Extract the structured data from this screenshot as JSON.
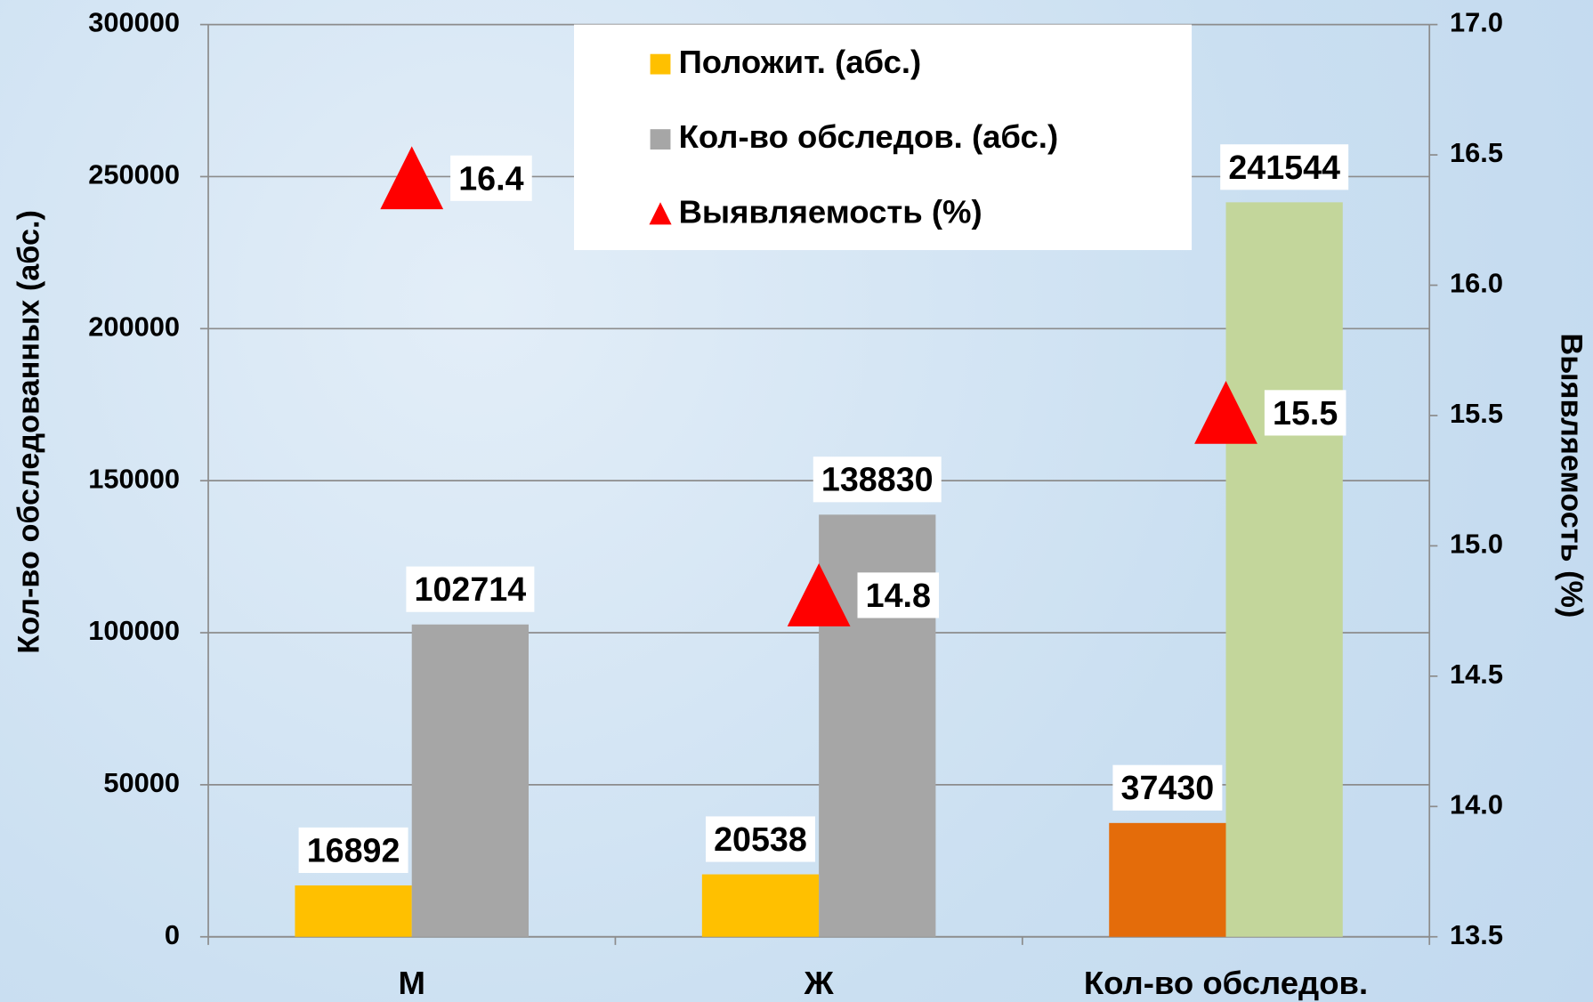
{
  "chart_data": {
    "type": "bar",
    "categories": [
      "М",
      "Ж",
      "Кол-во обследов."
    ],
    "series": [
      {
        "name": "Положит. (абс.)",
        "color": "#ffc000",
        "colors": [
          "#ffc000",
          "#ffc000",
          "#e46c0a"
        ],
        "values": [
          16892,
          20538,
          37430
        ]
      },
      {
        "name": "Кол-во обследов. (абс.)",
        "color": "#a6a6a6",
        "colors": [
          "#a6a6a6",
          "#a6a6a6",
          "#c3d69b"
        ],
        "values": [
          102714,
          138830,
          241544
        ]
      },
      {
        "name": "Выявляемость (%)",
        "type": "marker",
        "color": "#ff0000",
        "axis": "y2",
        "values": [
          16.4,
          14.8,
          15.5
        ]
      }
    ],
    "ylabel": "Кол-во обследованных (абс.)",
    "y2label": "Выявляемость (%)",
    "ylim": [
      0,
      300000
    ],
    "yticks": [
      0,
      50000,
      100000,
      150000,
      200000,
      250000,
      300000
    ],
    "y2lim": [
      13.5,
      17
    ],
    "y2ticks": [
      13.5,
      {
        "value": 14,
        "label": "14.0"
      },
      14.5,
      {
        "value": 15,
        "label": "15.0"
      },
      15.5,
      {
        "value": 16,
        "label": "16.0"
      },
      16.5,
      {
        "value": 17,
        "label": "17.0"
      }
    ],
    "grid": true,
    "legend": "top-center"
  }
}
